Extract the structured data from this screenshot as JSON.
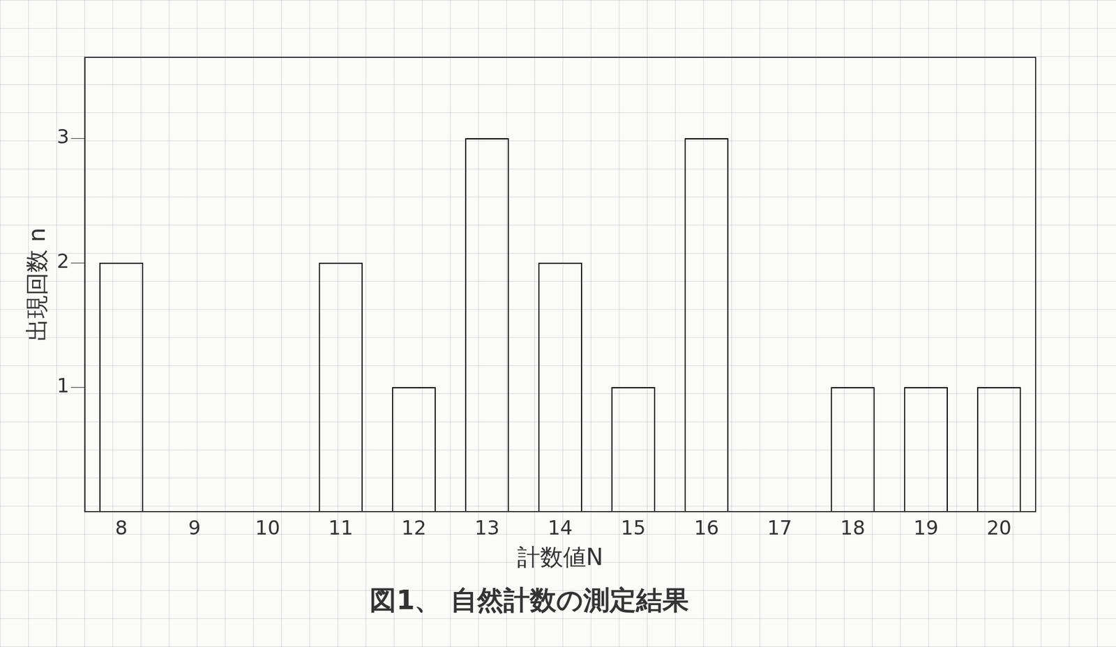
{
  "chart_data": {
    "type": "bar",
    "title": "図1、 自然計数の測定結果",
    "x_label": "計数値N",
    "y_label": "出現回数 n",
    "categories": [
      8,
      9,
      10,
      11,
      12,
      13,
      14,
      15,
      16,
      17,
      18,
      19,
      20
    ],
    "values": [
      2,
      0,
      0,
      2,
      1,
      3,
      2,
      1,
      3,
      0,
      1,
      1,
      1
    ],
    "color": "#000000",
    "ylim": [
      0,
      3.65
    ],
    "yticks": [
      1,
      2,
      3
    ],
    "grid": false
  }
}
